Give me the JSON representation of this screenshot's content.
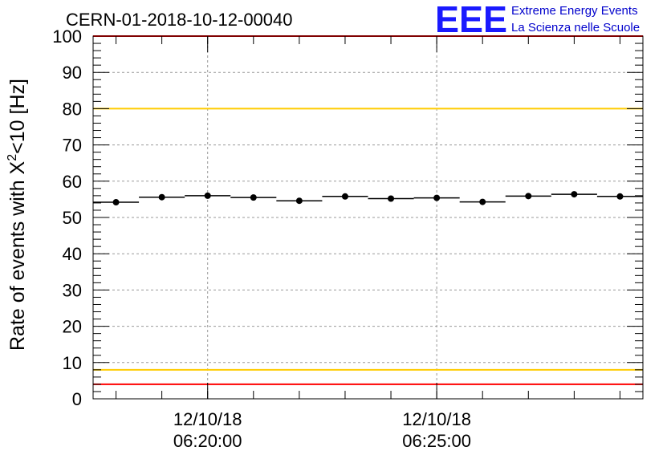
{
  "chart_data": {
    "type": "scatter",
    "title": "CERN-01-2018-10-12-00040",
    "xlabel": "",
    "ylabel_main": "Rate of events with X",
    "ylabel_sup": "2",
    "ylabel_tail": "<10 [Hz]",
    "ylim": [
      0,
      100
    ],
    "yticks": [
      "0",
      "10",
      "20",
      "30",
      "40",
      "50",
      "60",
      "70",
      "80",
      "90",
      "100"
    ],
    "xlim_minutes": [
      0,
      12
    ],
    "xticks": [
      {
        "minute": 2.5,
        "date": "12/10/18",
        "time": "06:20:00"
      },
      {
        "minute": 7.5,
        "date": "12/10/18",
        "time": "06:25:00"
      }
    ],
    "bin_width_minutes": 1,
    "x": [
      0.5,
      1.5,
      2.5,
      3.5,
      4.5,
      5.5,
      6.5,
      7.5,
      8.5,
      9.5,
      10.5,
      11.5
    ],
    "y": [
      54.2,
      55.6,
      56.0,
      55.5,
      54.6,
      55.8,
      55.2,
      55.4,
      54.3,
      55.9,
      56.4,
      55.8
    ],
    "reference_lines": [
      {
        "value": 100,
        "color": "#ff0000"
      },
      {
        "value": 80,
        "color": "#ffcc00"
      },
      {
        "value": 8,
        "color": "#ffcc00"
      },
      {
        "value": 4,
        "color": "#ff0000"
      }
    ],
    "grid": true
  },
  "logo": {
    "mark": "EEE",
    "line1": "Extreme Energy Events",
    "line2": "La Scienza nelle Scuole"
  }
}
